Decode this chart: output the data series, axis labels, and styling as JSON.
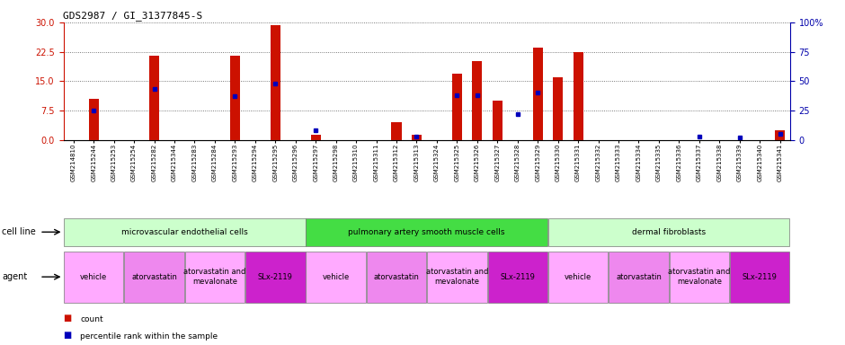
{
  "title": "GDS2987 / GI_31377845-S",
  "samples": [
    "GSM214810",
    "GSM215244",
    "GSM215253",
    "GSM215254",
    "GSM215282",
    "GSM215344",
    "GSM215283",
    "GSM215284",
    "GSM215293",
    "GSM215294",
    "GSM215295",
    "GSM215296",
    "GSM215297",
    "GSM215298",
    "GSM215310",
    "GSM215311",
    "GSM215312",
    "GSM215313",
    "GSM215324",
    "GSM215325",
    "GSM215326",
    "GSM215327",
    "GSM215328",
    "GSM215329",
    "GSM215330",
    "GSM215331",
    "GSM215332",
    "GSM215333",
    "GSM215334",
    "GSM215335",
    "GSM215336",
    "GSM215337",
    "GSM215338",
    "GSM215339",
    "GSM215340",
    "GSM215341"
  ],
  "counts": [
    0,
    10.5,
    0,
    0,
    21.5,
    0,
    0,
    0,
    21.5,
    0,
    29.2,
    0,
    1.3,
    0,
    0,
    0,
    4.5,
    1.2,
    0,
    17.0,
    20.0,
    10.0,
    0,
    23.5,
    16.0,
    22.5,
    0,
    0,
    0,
    0,
    0,
    0,
    0,
    0,
    0,
    2.5
  ],
  "percentiles": [
    0,
    25,
    0,
    0,
    43,
    0,
    0,
    0,
    37,
    0,
    48,
    0,
    8,
    0,
    0,
    0,
    0,
    3,
    0,
    38,
    38,
    0,
    22,
    40,
    0,
    0,
    0,
    0,
    0,
    0,
    0,
    3,
    0,
    2,
    0,
    5
  ],
  "ylim_left": [
    0,
    30
  ],
  "ylim_right": [
    0,
    100
  ],
  "yticks_left": [
    0,
    7.5,
    15,
    22.5,
    30
  ],
  "yticks_right": [
    0,
    25,
    50,
    75,
    100
  ],
  "bar_color": "#cc1100",
  "dot_color": "#0000bb",
  "cell_line_colors": [
    "#ccffcc",
    "#44dd44",
    "#ccffcc"
  ],
  "cell_line_labels": [
    "microvascular endothelial cells",
    "pulmonary artery smooth muscle cells",
    "dermal fibroblasts"
  ],
  "cell_line_starts": [
    0,
    12,
    24
  ],
  "cell_line_ends": [
    12,
    24,
    36
  ],
  "agent_labels": [
    "vehicle",
    "atorvastatin",
    "atorvastatin and\nmevalonate",
    "SLx-2119",
    "vehicle",
    "atorvastatin",
    "atorvastatin and\nmevalonate",
    "SLx-2119",
    "vehicle",
    "atorvastatin",
    "atorvastatin and\nmevalonate",
    "SLx-2119"
  ],
  "agent_starts": [
    0,
    3,
    6,
    9,
    12,
    15,
    18,
    21,
    24,
    27,
    30,
    33
  ],
  "agent_ends": [
    3,
    6,
    9,
    12,
    15,
    18,
    21,
    24,
    27,
    30,
    33,
    36
  ],
  "agent_colors": [
    "#ffaaff",
    "#ee88ee",
    "#ffaaff",
    "#cc22cc",
    "#ffaaff",
    "#ee88ee",
    "#ffaaff",
    "#cc22cc",
    "#ffaaff",
    "#ee88ee",
    "#ffaaff",
    "#cc22cc"
  ],
  "left_axis_color": "#cc1100",
  "right_axis_color": "#0000aa",
  "legend_count_color": "#cc1100",
  "legend_percentile_color": "#0000bb",
  "bg_color": "#ffffff",
  "plot_bg": "#f0f0f0",
  "label_fontsize": 7,
  "tick_fontsize": 7,
  "bar_width": 0.5
}
